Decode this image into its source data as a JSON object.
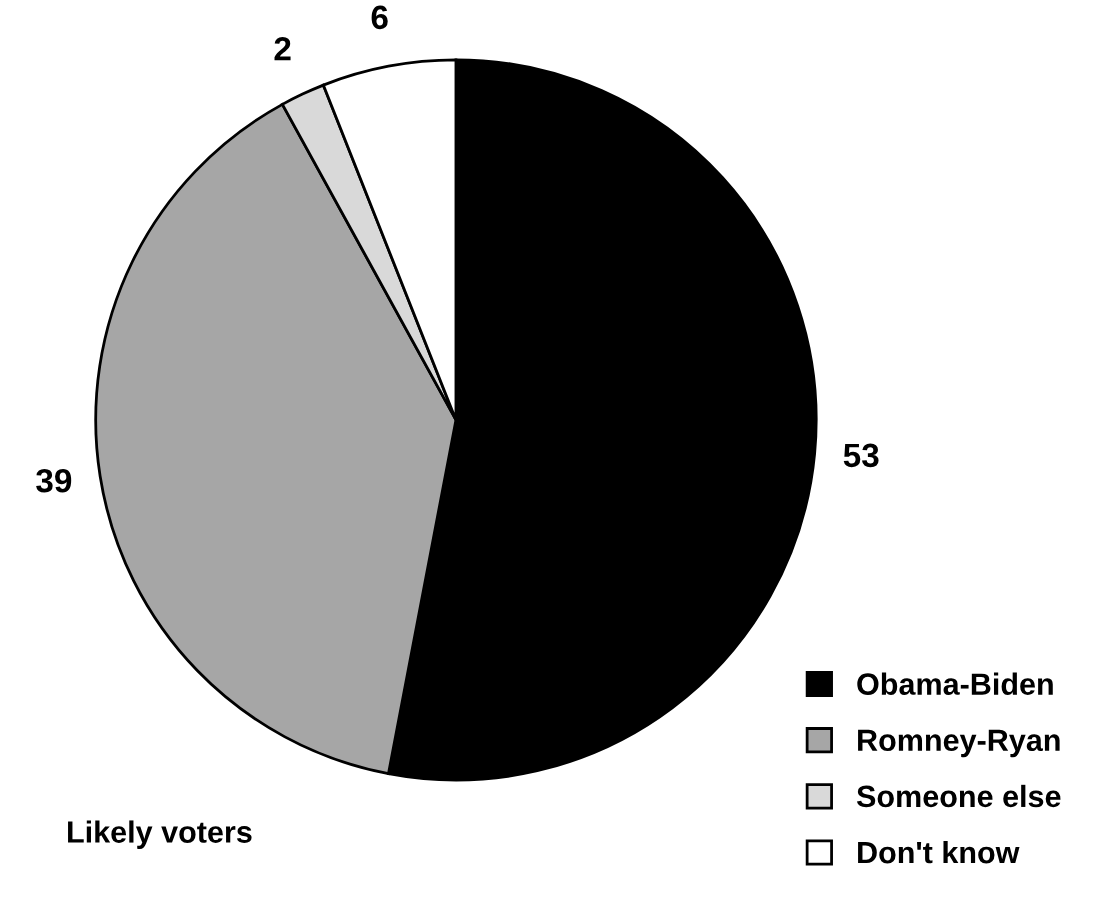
{
  "chart_data": {
    "type": "pie",
    "categories": [
      "Obama-Biden",
      "Romney-Ryan",
      "Someone else",
      "Don't know"
    ],
    "values": [
      53,
      39,
      2,
      6
    ],
    "colors": [
      "#000000",
      "#a6a6a6",
      "#d9d9d9",
      "#ffffff"
    ],
    "data_labels": true,
    "legend": "bottom right",
    "annotations": [
      "Likely voters"
    ]
  }
}
